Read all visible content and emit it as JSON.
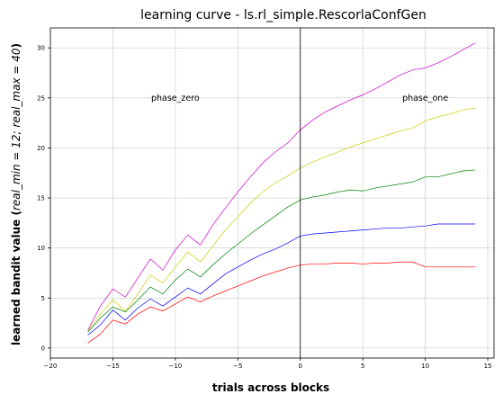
{
  "chart_data": {
    "type": "line",
    "title": "learning curve - ls.rl_simple.RescorlaConfGen",
    "xlabel": "trials across blocks",
    "ylabel_main": "learned bandit value (",
    "ylabel_math": "real_min = 12; real_max = 40",
    "ylabel_end": ")",
    "xlim": [
      -20,
      15.5
    ],
    "ylim": [
      -1,
      32
    ],
    "xticks": [
      -20,
      -15,
      -10,
      -5,
      0,
      5,
      10,
      15
    ],
    "yticks": [
      0,
      5,
      10,
      15,
      20,
      25,
      30
    ],
    "grid": true,
    "vline_x": 0,
    "annotations": [
      {
        "text": "phase_zero",
        "x": -10,
        "y": 25
      },
      {
        "text": "phase_one",
        "x": 10,
        "y": 25
      }
    ],
    "series": [
      {
        "color": "#ff0000",
        "x": [
          -17,
          -16,
          -15,
          -14,
          -13,
          -12,
          -11,
          -10,
          -9,
          -8,
          -7,
          -6,
          -5,
          -4,
          -3,
          -2,
          -1,
          0,
          1,
          2,
          3,
          4,
          5,
          6,
          7,
          8,
          9,
          10,
          11,
          12,
          13,
          14
        ],
        "y": [
          0.5,
          1.4,
          2.8,
          2.4,
          3.4,
          4.1,
          3.7,
          4.4,
          5.1,
          4.6,
          5.2,
          5.7,
          6.2,
          6.7,
          7.2,
          7.6,
          8.0,
          8.3,
          8.4,
          8.4,
          8.5,
          8.5,
          8.4,
          8.5,
          8.5,
          8.6,
          8.6,
          8.1,
          8.1,
          8.1,
          8.1,
          8.1
        ]
      },
      {
        "color": "#0000ff",
        "x": [
          -17,
          -16,
          -15,
          -14,
          -13,
          -12,
          -11,
          -10,
          -9,
          -8,
          -7,
          -6,
          -5,
          -4,
          -3,
          -2,
          -1,
          0,
          1,
          2,
          3,
          4,
          5,
          6,
          7,
          8,
          9,
          10,
          11,
          12,
          13,
          14
        ],
        "y": [
          1.3,
          2.3,
          3.8,
          2.8,
          4.0,
          4.9,
          4.2,
          5.1,
          6.0,
          5.4,
          6.4,
          7.4,
          8.1,
          8.8,
          9.4,
          9.9,
          10.5,
          11.2,
          11.4,
          11.5,
          11.6,
          11.7,
          11.8,
          11.9,
          12.0,
          12.0,
          12.1,
          12.2,
          12.4,
          12.4,
          12.4,
          12.4
        ]
      },
      {
        "color": "#008000",
        "x": [
          -17,
          -16,
          -15,
          -14,
          -13,
          -12,
          -11,
          -10,
          -9,
          -8,
          -7,
          -6,
          -5,
          -4,
          -3,
          -2,
          -1,
          0,
          1,
          2,
          3,
          4,
          5,
          6,
          7,
          8,
          9,
          10,
          11,
          12,
          13,
          14
        ],
        "y": [
          1.6,
          3.0,
          4.1,
          3.6,
          4.8,
          6.1,
          5.4,
          6.8,
          7.9,
          7.1,
          8.3,
          9.4,
          10.4,
          11.4,
          12.3,
          13.2,
          14.1,
          14.8,
          15.1,
          15.3,
          15.6,
          15.8,
          15.7,
          16.0,
          16.2,
          16.4,
          16.6,
          17.1,
          17.1,
          17.4,
          17.7,
          17.8
        ]
      },
      {
        "color": "#cccc00",
        "x": [
          -17,
          -16,
          -15,
          -14,
          -13,
          -12,
          -11,
          -10,
          -9,
          -8,
          -7,
          -6,
          -5,
          -4,
          -3,
          -2,
          -1,
          0,
          1,
          2,
          3,
          4,
          5,
          6,
          7,
          8,
          9,
          10,
          11,
          12,
          13,
          14
        ],
        "y": [
          1.7,
          3.4,
          4.8,
          3.7,
          5.4,
          7.3,
          6.5,
          8.1,
          9.6,
          8.6,
          10.2,
          11.8,
          13.1,
          14.5,
          15.6,
          16.5,
          17.2,
          18.0,
          18.6,
          19.1,
          19.6,
          20.1,
          20.5,
          20.9,
          21.3,
          21.7,
          22.0,
          22.7,
          23.1,
          23.4,
          23.8,
          24.0
        ]
      },
      {
        "color": "#cc00cc",
        "x": [
          -17,
          -16,
          -15,
          -14,
          -13,
          -12,
          -11,
          -10,
          -9,
          -8,
          -7,
          -6,
          -5,
          -4,
          -3,
          -2,
          -1,
          0,
          1,
          2,
          3,
          4,
          5,
          6,
          7,
          8,
          9,
          10,
          11,
          12,
          13,
          14
        ],
        "y": [
          1.8,
          4.2,
          5.9,
          5.1,
          7.0,
          8.9,
          7.8,
          9.8,
          11.3,
          10.3,
          12.3,
          14.0,
          15.6,
          17.1,
          18.5,
          19.6,
          20.5,
          21.8,
          22.8,
          23.6,
          24.2,
          24.8,
          25.3,
          25.9,
          26.6,
          27.3,
          27.8,
          28.0,
          28.5,
          29.1,
          29.8,
          30.5
        ]
      }
    ]
  }
}
